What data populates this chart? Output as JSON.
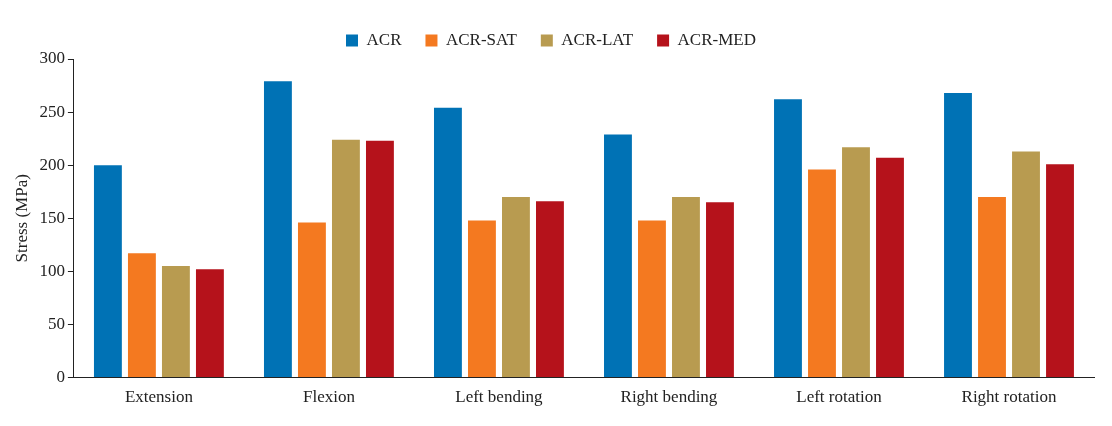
{
  "chart_data": {
    "type": "bar",
    "ylabel": "Stress (MPa)",
    "categories": [
      "Extension",
      "Flexion",
      "Left bending",
      "Right bending",
      "Left rotation",
      "Right rotation"
    ],
    "series": [
      {
        "name": "ACR",
        "color": "#0072b5",
        "values": [
          200,
          279,
          254,
          229,
          262,
          268
        ]
      },
      {
        "name": "ACR-SAT",
        "color": "#f47920",
        "values": [
          117,
          146,
          148,
          148,
          196,
          170
        ]
      },
      {
        "name": "ACR-LAT",
        "color": "#b89b50",
        "values": [
          105,
          224,
          170,
          170,
          217,
          213
        ]
      },
      {
        "name": "ACR-MED",
        "color": "#b5121b",
        "values": [
          102,
          223,
          166,
          165,
          207,
          201
        ]
      }
    ],
    "ylim": [
      0,
      300
    ],
    "yticks": [
      0,
      50,
      100,
      150,
      200,
      250,
      300
    ],
    "grid": false,
    "legend": "top"
  }
}
